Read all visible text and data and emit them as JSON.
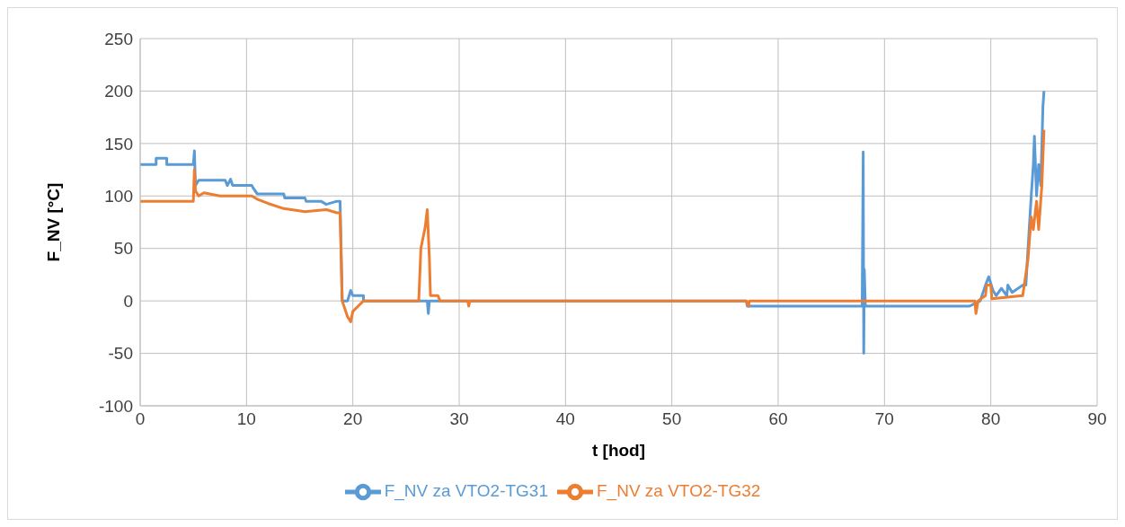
{
  "chart_data": {
    "type": "line",
    "xlabel": "t [hod]",
    "ylabel": "F_NV [°C]",
    "xlim": [
      0,
      90
    ],
    "xticks": [
      0,
      10,
      20,
      30,
      40,
      50,
      60,
      70,
      80,
      90
    ],
    "ylim": [
      -100,
      250
    ],
    "yticks": [
      -100,
      -50,
      0,
      50,
      100,
      150,
      200,
      250
    ],
    "grid": true,
    "legend": "bottom",
    "marker": "none",
    "line_style": "solid",
    "series": [
      {
        "name": "F_NV za VTO2-TG31",
        "color": "#5b9bd5",
        "x": [
          0,
          1.5,
          1.5,
          2.5,
          2.5,
          5,
          5.1,
          5.2,
          5.5,
          8,
          8.2,
          8.5,
          8.7,
          10.5,
          10.6,
          11,
          13.5,
          13.6,
          15.5,
          15.6,
          17,
          17.5,
          18.5,
          18.8,
          19,
          19.5,
          19.8,
          20,
          21,
          21,
          27,
          27.1,
          27.2,
          57,
          57.1,
          67.9,
          68,
          68.05,
          68.1,
          68.2,
          78,
          79,
          79.5,
          79.8,
          80.2,
          80.5,
          81,
          81.5,
          81.6,
          82,
          83,
          83.3,
          83.5,
          83.8,
          84,
          84.1,
          84.3,
          84.5,
          84.7,
          84.9,
          85
        ],
        "values": [
          130,
          130,
          136,
          136,
          130,
          130,
          143,
          110,
          115,
          115,
          110,
          116,
          110,
          110,
          108,
          102,
          102,
          98,
          98,
          95,
          95,
          92,
          95,
          95,
          0,
          0,
          10,
          5,
          5,
          0,
          0,
          -12,
          0,
          0,
          -5,
          -5,
          142,
          -50,
          30,
          -5,
          -5,
          0,
          15,
          23,
          10,
          5,
          12,
          5,
          15,
          8,
          15,
          15,
          50,
          100,
          130,
          157,
          100,
          130,
          110,
          185,
          200
        ]
      },
      {
        "name": "F_NV za VTO2-TG32",
        "color": "#ed7d31",
        "x": [
          0,
          5,
          5.1,
          5.2,
          5.5,
          6,
          7.5,
          10.5,
          11,
          12,
          13.5,
          15.5,
          17.5,
          18.5,
          18.8,
          19,
          19.5,
          19.8,
          20,
          20.5,
          21,
          26.2,
          26.4,
          26.6,
          26.8,
          27,
          27.2,
          27.3,
          28,
          28.2,
          30.8,
          30.9,
          31,
          57,
          57.2,
          57.3,
          78.5,
          78.6,
          78.8,
          79.5,
          79.6,
          80,
          80.1,
          83,
          83.5,
          83.8,
          84,
          84.3,
          84.5,
          84.8,
          85
        ],
        "values": [
          95,
          95,
          125,
          105,
          100,
          103,
          100,
          100,
          97,
          93,
          88,
          85,
          87,
          84,
          84,
          0,
          -15,
          -20,
          -10,
          -5,
          0,
          0,
          50,
          60,
          70,
          87,
          40,
          5,
          5,
          0,
          0,
          -5,
          0,
          0,
          -5,
          0,
          0,
          -12,
          0,
          5,
          15,
          15,
          2,
          5,
          40,
          80,
          68,
          95,
          68,
          110,
          163
        ]
      }
    ]
  }
}
